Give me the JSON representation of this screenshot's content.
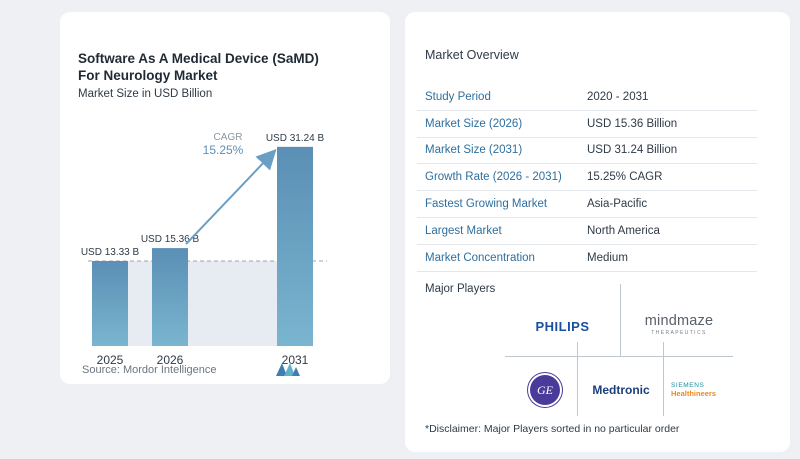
{
  "chart": {
    "title_line1": "Software As A Medical Device (SaMD)",
    "title_line2": "For Neurology Market",
    "subtitle": "Market Size in USD Billion",
    "cagr_label": "CAGR",
    "cagr_value": "15.25%",
    "source": "Source:  Mordor Intelligence"
  },
  "chart_data": {
    "type": "bar",
    "categories": [
      "2025",
      "2026",
      "2031"
    ],
    "values": [
      13.33,
      15.36,
      31.24
    ],
    "data_labels": [
      "USD 13.33 B",
      "USD 15.36 B",
      "USD 31.24 B"
    ],
    "title": "Software As A Medical Device (SaMD) For Neurology Market",
    "ylabel": "Market Size in USD Billion",
    "ylim": [
      0,
      32
    ],
    "colors": {
      "bar_top": "#5b8fb5",
      "bar_bottom": "#7ab5cf",
      "arrow": "#6a9ec4",
      "dashed": "#9aa4ad"
    }
  },
  "overview": {
    "title": "Market Overview",
    "rows": [
      {
        "label": "Study Period",
        "value": "2020 - 2031"
      },
      {
        "label": "Market Size (2026)",
        "value": "USD 15.36 Billion"
      },
      {
        "label": "Market Size (2031)",
        "value": "USD 31.24 Billion"
      },
      {
        "label": "Growth Rate (2026 - 2031)",
        "value": "15.25% CAGR"
      },
      {
        "label": "Fastest Growing Market",
        "value": "Asia-Pacific"
      },
      {
        "label": "Largest Market",
        "value": "North America"
      },
      {
        "label": "Market Concentration",
        "value": "Medium"
      }
    ]
  },
  "players": {
    "title": "Major Players",
    "philips": "PHILIPS",
    "mindmaze": "mindmaze",
    "mindmaze_sub": "THERAPEUTICS",
    "ge": "GE",
    "medtronic": "Medtronic",
    "siemens_1": "SIEMENS",
    "siemens_2": "Healthineers"
  },
  "disclaimer": "*Disclaimer: Major Players sorted in no particular order"
}
